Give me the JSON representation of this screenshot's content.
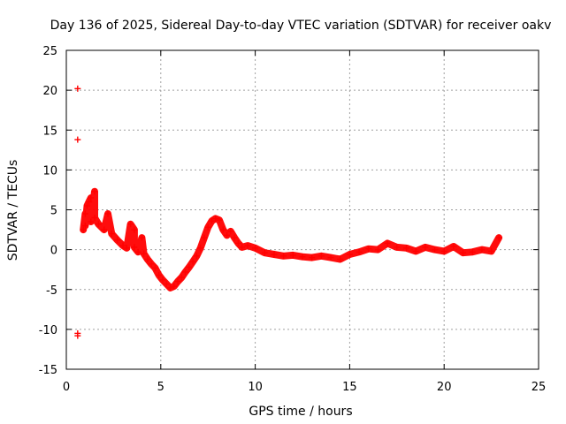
{
  "chart_data": {
    "type": "scatter",
    "title": "Day 136 of 2025, Sidereal Day-to-day VTEC variation (SDTVAR) for receiver oakv",
    "xlabel": "GPS time / hours",
    "ylabel": "SDTVAR / TECUs",
    "xlim": [
      0,
      25
    ],
    "ylim": [
      -15,
      25
    ],
    "xticks": [
      "0",
      "5",
      "10",
      "15",
      "20",
      "25"
    ],
    "yticks": [
      "-15",
      "-10",
      "-5",
      "0",
      "5",
      "10",
      "15",
      "20",
      "25"
    ],
    "grid": true,
    "marker": "+",
    "color": "#ff0000",
    "series": [
      {
        "name": "SDTVAR",
        "points": [
          [
            0.6,
            20.2
          ],
          [
            0.6,
            13.8
          ],
          [
            0.6,
            -10.5
          ],
          [
            0.6,
            -10.8
          ],
          [
            0.9,
            2.5
          ],
          [
            1.0,
            4.5
          ],
          [
            1.1,
            5.5
          ],
          [
            1.2,
            6.0
          ],
          [
            1.3,
            6.5
          ],
          [
            1.5,
            7.3
          ],
          [
            1.0,
            3.0
          ],
          [
            1.3,
            3.5
          ],
          [
            1.5,
            4.0
          ],
          [
            1.7,
            3.2
          ],
          [
            2.0,
            2.5
          ],
          [
            2.2,
            4.5
          ],
          [
            2.4,
            2.0
          ],
          [
            2.7,
            1.2
          ],
          [
            3.0,
            0.5
          ],
          [
            3.2,
            0.2
          ],
          [
            3.4,
            3.2
          ],
          [
            3.6,
            2.5
          ],
          [
            3.6,
            0.3
          ],
          [
            3.8,
            -0.3
          ],
          [
            4.0,
            1.5
          ],
          [
            4.1,
            -0.5
          ],
          [
            4.3,
            -1.2
          ],
          [
            4.5,
            -1.8
          ],
          [
            4.7,
            -2.3
          ],
          [
            4.9,
            -3.2
          ],
          [
            5.1,
            -3.8
          ],
          [
            5.3,
            -4.3
          ],
          [
            5.5,
            -4.8
          ],
          [
            5.7,
            -4.6
          ],
          [
            5.9,
            -4.0
          ],
          [
            6.1,
            -3.5
          ],
          [
            6.3,
            -2.8
          ],
          [
            6.5,
            -2.2
          ],
          [
            6.7,
            -1.5
          ],
          [
            6.9,
            -0.8
          ],
          [
            7.1,
            0.2
          ],
          [
            7.3,
            1.5
          ],
          [
            7.5,
            2.8
          ],
          [
            7.7,
            3.6
          ],
          [
            7.9,
            3.9
          ],
          [
            8.1,
            3.7
          ],
          [
            8.3,
            2.5
          ],
          [
            8.5,
            1.8
          ],
          [
            8.7,
            2.3
          ],
          [
            8.9,
            1.5
          ],
          [
            9.1,
            0.8
          ],
          [
            9.3,
            0.3
          ],
          [
            9.6,
            0.5
          ],
          [
            10.0,
            0.2
          ],
          [
            10.5,
            -0.4
          ],
          [
            11.0,
            -0.6
          ],
          [
            11.5,
            -0.8
          ],
          [
            12.0,
            -0.7
          ],
          [
            12.5,
            -0.9
          ],
          [
            13.0,
            -1.0
          ],
          [
            13.5,
            -0.8
          ],
          [
            14.0,
            -1.0
          ],
          [
            14.5,
            -1.2
          ],
          [
            15.0,
            -0.6
          ],
          [
            15.5,
            -0.3
          ],
          [
            16.0,
            0.1
          ],
          [
            16.5,
            0.0
          ],
          [
            17.0,
            0.8
          ],
          [
            17.5,
            0.3
          ],
          [
            18.0,
            0.2
          ],
          [
            18.5,
            -0.2
          ],
          [
            19.0,
            0.3
          ],
          [
            19.5,
            0.0
          ],
          [
            20.0,
            -0.2
          ],
          [
            20.5,
            0.4
          ],
          [
            21.0,
            -0.4
          ],
          [
            21.5,
            -0.3
          ],
          [
            22.0,
            0.0
          ],
          [
            22.5,
            -0.2
          ],
          [
            22.9,
            1.5
          ]
        ]
      }
    ]
  }
}
